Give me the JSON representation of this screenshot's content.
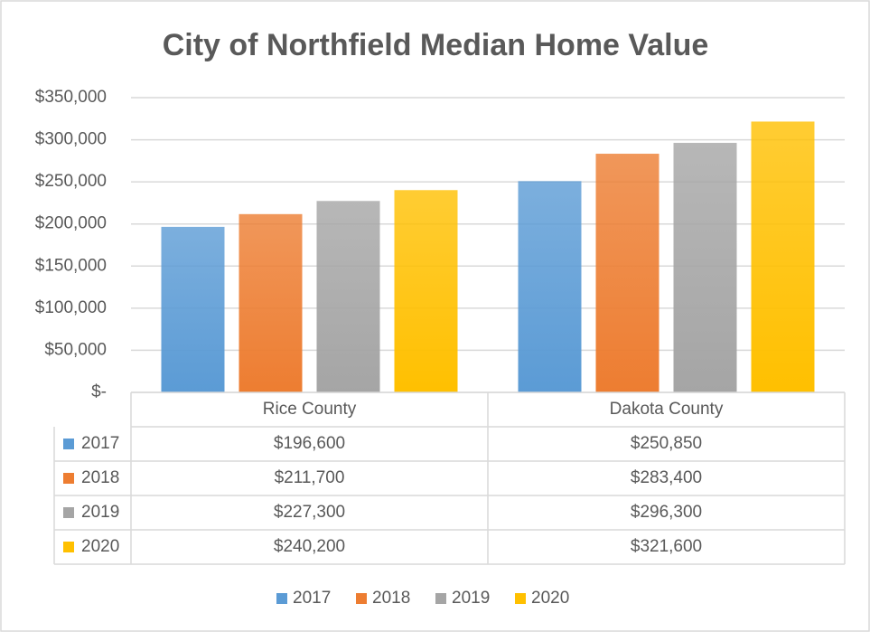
{
  "chart_data": {
    "type": "bar",
    "title": "City of Northfield Median Home Value",
    "categories": [
      "Rice County",
      "Dakota County"
    ],
    "series": [
      {
        "name": "2017",
        "color": "#5b9bd5",
        "values": [
          196600,
          250850
        ],
        "value_labels": [
          "$196,600",
          "$250,850"
        ]
      },
      {
        "name": "2018",
        "color": "#ed7d31",
        "values": [
          211700,
          283400
        ],
        "value_labels": [
          "$211,700",
          "$283,400"
        ]
      },
      {
        "name": "2019",
        "color": "#a5a5a5",
        "values": [
          227300,
          296300
        ],
        "value_labels": [
          "$227,300",
          "$296,300"
        ]
      },
      {
        "name": "2020",
        "color": "#ffc000",
        "values": [
          240200,
          321600
        ],
        "value_labels": [
          "$240,200",
          "$321,600"
        ]
      }
    ],
    "ylim": [
      0,
      350000
    ],
    "yticks": [
      {
        "value": 0,
        "label": "$-"
      },
      {
        "value": 50000,
        "label": "$50,000"
      },
      {
        "value": 100000,
        "label": "$100,000"
      },
      {
        "value": 150000,
        "label": "$150,000"
      },
      {
        "value": 200000,
        "label": "$200,000"
      },
      {
        "value": 250000,
        "label": "$250,000"
      },
      {
        "value": 300000,
        "label": "$300,000"
      },
      {
        "value": 350000,
        "label": "$350,000"
      }
    ],
    "grid": true
  }
}
